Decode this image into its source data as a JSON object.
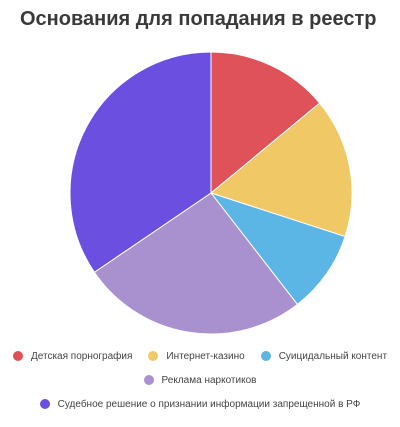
{
  "chart_data": {
    "type": "pie",
    "title": "Основания для попадания в реестр",
    "series": [
      {
        "name": "Детская порнография",
        "value": 14,
        "color": "#e0525a"
      },
      {
        "name": "Интернет-казино",
        "value": 16,
        "color": "#f0c865"
      },
      {
        "name": "Суицидальный контент",
        "value": 9.5,
        "color": "#5bb5e5"
      },
      {
        "name": "Реклама наркотиков",
        "value": 26,
        "color": "#a990cf"
      },
      {
        "name": "Судебное решение о признании информации запрещенной в РФ",
        "value": 34.5,
        "color": "#6a4fe0"
      }
    ],
    "legend_position": "bottom"
  }
}
